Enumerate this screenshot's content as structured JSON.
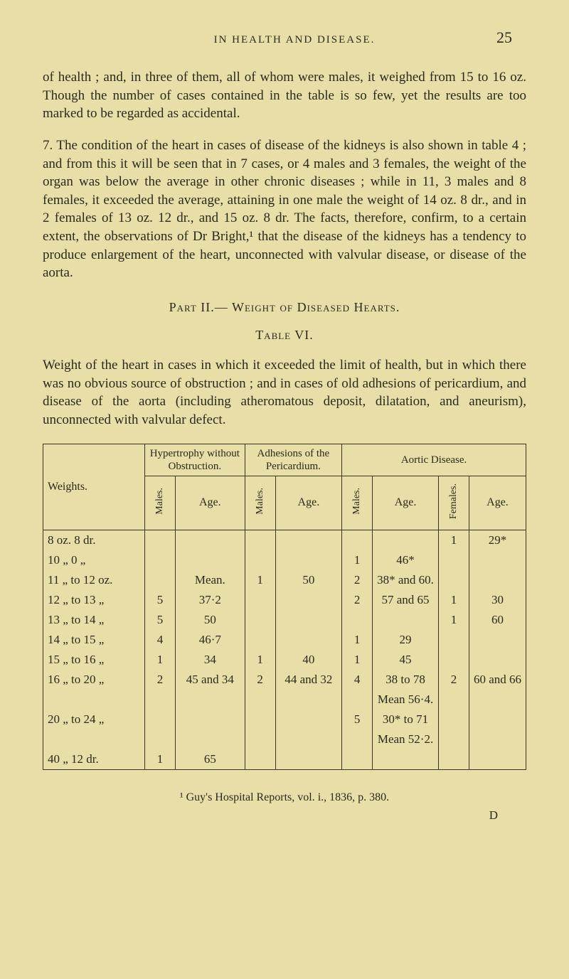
{
  "header": {
    "running_title": "IN HEALTH AND DISEASE.",
    "page_number": "25"
  },
  "paragraphs": {
    "p1": "of health ; and, in three of them, all of whom were males, it weighed from 15 to 16 oz. Though the number of cases contained in the table is so few, yet the results are too marked to be regarded as accidental.",
    "p2": "7. The condition of the heart in cases of disease of the kidneys is also shown in table 4 ; and from this it will be seen that in 7 cases, or 4 males and 3 females, the weight of the organ was below the average in other chronic diseases ; while in 11, 3 males and 8 females, it exceeded the average, attaining in one male the weight of 14 oz. 8 dr., and in 2 females of 13 oz. 12 dr., and 15 oz. 8 dr. The facts, therefore, confirm, to a certain extent, the observations of Dr Bright,¹ that the disease of the kidneys has a tendency to produce enlargement of the heart, unconnected with valvular disease, or disease of the aorta."
  },
  "section": {
    "part_title": "Part II.— Weight of Diseased Hearts.",
    "table_label": "Table VI.",
    "table_intro": "Weight of the heart in cases in which it exceeded the limit of health, but in which there was no obvious source of obstruction ; and in cases of old adhesions of pericardium, and disease of the aorta (including atheromatous deposit, dilatation, and aneurism), unconnected with valvular defect."
  },
  "table": {
    "top_headers": {
      "weights": "Weights.",
      "hypertrophy": "Hypertrophy without Obstruction.",
      "adhesions": "Adhesions of the Pericardium.",
      "aortic": "Aortic Disease."
    },
    "sub_headers": {
      "males": "Males.",
      "females": "Females.",
      "age": "Age."
    },
    "rows": [
      {
        "weight": "8 oz. 8 dr.",
        "h_m": "",
        "h_age": "",
        "a_m": "",
        "a_age": "",
        "ao_m": "",
        "ao_age": "",
        "f_m": "1",
        "f_age": "29*"
      },
      {
        "weight": "10 „ 0 „",
        "h_m": "",
        "h_age": "",
        "a_m": "",
        "a_age": "",
        "ao_m": "1",
        "ao_age": "46*",
        "f_m": "",
        "f_age": ""
      },
      {
        "weight": "11 „ to 12 oz.",
        "h_m": "",
        "h_age": "Mean.",
        "a_m": "1",
        "a_age": "50",
        "ao_m": "2",
        "ao_age": "38* and 60.",
        "f_m": "",
        "f_age": ""
      },
      {
        "weight": "12 „ to 13 „",
        "h_m": "5",
        "h_age": "37·2",
        "a_m": "",
        "a_age": "",
        "ao_m": "2",
        "ao_age": "57 and 65",
        "f_m": "1",
        "f_age": "30"
      },
      {
        "weight": "13 „ to 14 „",
        "h_m": "5",
        "h_age": "50",
        "a_m": "",
        "a_age": "",
        "ao_m": "",
        "ao_age": "",
        "f_m": "1",
        "f_age": "60"
      },
      {
        "weight": "14 „ to 15 „",
        "h_m": "4",
        "h_age": "46·7",
        "a_m": "",
        "a_age": "",
        "ao_m": "1",
        "ao_age": "29",
        "f_m": "",
        "f_age": ""
      },
      {
        "weight": "15 „ to 16 „",
        "h_m": "1",
        "h_age": "34",
        "a_m": "1",
        "a_age": "40",
        "ao_m": "1",
        "ao_age": "45",
        "f_m": "",
        "f_age": ""
      },
      {
        "weight": "16 „ to 20 „",
        "h_m": "2",
        "h_age": "45 and 34",
        "a_m": "2",
        "a_age": "44 and 32",
        "ao_m": "4",
        "ao_age": "38 to 78",
        "f_m": "2",
        "f_age": "60 and 66"
      },
      {
        "weight": "",
        "h_m": "",
        "h_age": "",
        "a_m": "",
        "a_age": "",
        "ao_m": "",
        "ao_age": "Mean 56·4.",
        "f_m": "",
        "f_age": ""
      },
      {
        "weight": "20 „ to 24 „",
        "h_m": "",
        "h_age": "",
        "a_m": "",
        "a_age": "",
        "ao_m": "5",
        "ao_age": "30* to 71",
        "f_m": "",
        "f_age": ""
      },
      {
        "weight": "",
        "h_m": "",
        "h_age": "",
        "a_m": "",
        "a_age": "",
        "ao_m": "",
        "ao_age": "Mean 52·2.",
        "f_m": "",
        "f_age": ""
      },
      {
        "weight": "40 „ 12 dr.",
        "h_m": "1",
        "h_age": "65",
        "a_m": "",
        "a_age": "",
        "ao_m": "",
        "ao_age": "",
        "f_m": "",
        "f_age": ""
      }
    ]
  },
  "footnote": "¹ Guy's Hospital Reports, vol. i., 1836, p. 380.",
  "signature": "D",
  "styling": {
    "background_color": "#e8dfa8",
    "text_color": "#2a2a1a",
    "border_color": "#3a3520",
    "body_fontsize": 19,
    "header_fontsize": 15,
    "pagenum_fontsize": 22,
    "table_fontsize": 17
  }
}
